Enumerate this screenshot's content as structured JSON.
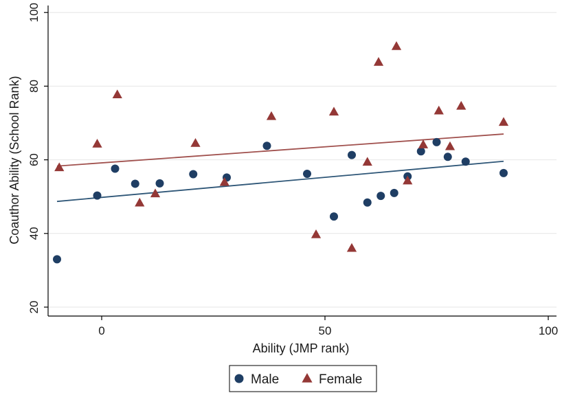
{
  "chart_data": {
    "type": "scatter",
    "xlabel": "Ability (JMP rank)",
    "ylabel": "Coauthor Ability (School Rank)",
    "xlim": [
      -12,
      100
    ],
    "ylim": [
      18,
      100
    ],
    "xticks": [
      0,
      50,
      100
    ],
    "yticks": [
      20,
      40,
      60,
      80,
      100
    ],
    "grid": "horizontal",
    "legend_position": "bottom",
    "series": [
      {
        "name": "Male",
        "marker": "circle",
        "color": "#1f3e64",
        "points": [
          [
            -10,
            33
          ],
          [
            -1,
            50.3
          ],
          [
            3,
            57.6
          ],
          [
            7.5,
            53.5
          ],
          [
            13,
            53.6
          ],
          [
            20.5,
            56.1
          ],
          [
            28,
            55.2
          ],
          [
            37,
            63.8
          ],
          [
            46,
            56.2
          ],
          [
            52,
            44.6
          ],
          [
            56,
            61.3
          ],
          [
            59.5,
            48.4
          ],
          [
            62.5,
            50.2
          ],
          [
            65.5,
            51
          ],
          [
            68.5,
            55.5
          ],
          [
            71.5,
            62.3
          ],
          [
            75,
            64.8
          ],
          [
            77.5,
            60.8
          ],
          [
            81.5,
            59.5
          ],
          [
            90,
            56.4
          ]
        ],
        "fit": {
          "x": [
            -10,
            90
          ],
          "y": [
            48.7,
            59.6
          ],
          "color": "#2e5677"
        }
      },
      {
        "name": "Female",
        "marker": "triangle",
        "color": "#943836",
        "points": [
          [
            -9.5,
            57.9
          ],
          [
            -1,
            64.3
          ],
          [
            3.5,
            77.7
          ],
          [
            8.5,
            48.3
          ],
          [
            12,
            50.8
          ],
          [
            21,
            64.5
          ],
          [
            27.5,
            53.9
          ],
          [
            38,
            71.8
          ],
          [
            48,
            39.7
          ],
          [
            52,
            73
          ],
          [
            56,
            36
          ],
          [
            59.5,
            59.4
          ],
          [
            62,
            86.5
          ],
          [
            66,
            90.8
          ],
          [
            68.5,
            54.3
          ],
          [
            72,
            64.1
          ],
          [
            75.5,
            73.3
          ],
          [
            78,
            63.6
          ],
          [
            80.5,
            74.6
          ],
          [
            90,
            70.2
          ]
        ],
        "fit": {
          "x": [
            -10,
            90
          ],
          "y": [
            58.3,
            67
          ],
          "color": "#a0504d"
        }
      }
    ]
  }
}
